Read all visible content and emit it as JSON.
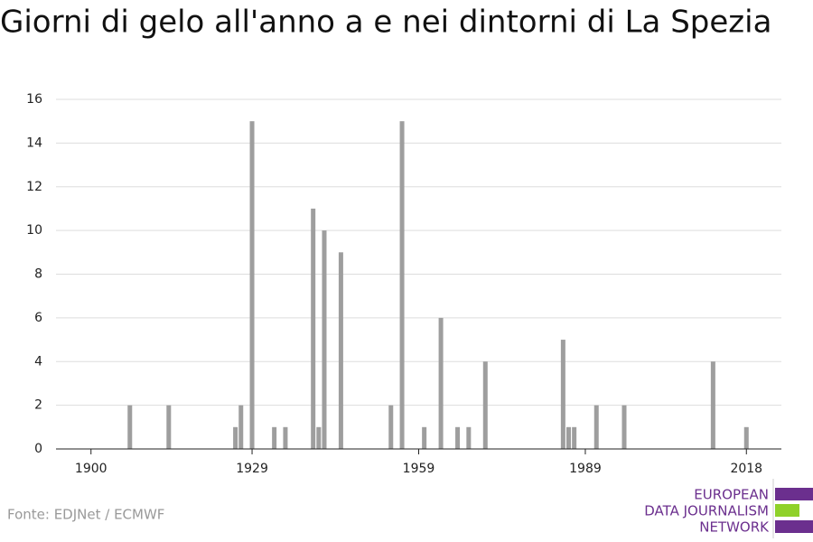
{
  "chart_data": {
    "type": "bar",
    "title": "Giorni di gelo all'anno a e nei dintorni di La Spezia",
    "x": [
      1907,
      1914,
      1926,
      1927,
      1929,
      1933,
      1935,
      1940,
      1941,
      1942,
      1945,
      1954,
      1956,
      1960,
      1963,
      1966,
      1968,
      1971,
      1985,
      1986,
      1987,
      1991,
      1996,
      2012,
      2018
    ],
    "values": [
      2,
      2,
      1,
      2,
      15,
      1,
      1,
      11,
      1,
      10,
      9,
      2,
      15,
      1,
      6,
      1,
      1,
      4,
      5,
      1,
      1,
      2,
      2,
      4,
      1
    ],
    "color": "#9e9e9e",
    "xlim": [
      1893.7,
      2024.3
    ],
    "xticks": [
      1900,
      1929,
      1959,
      1989,
      2018
    ],
    "ylim": [
      0,
      16
    ],
    "yticks": [
      0,
      2,
      4,
      6,
      8,
      10,
      12,
      14,
      16
    ],
    "grid": true,
    "source": "Fonte: EDJNet / ECMWF",
    "logo": [
      "EUROPEAN",
      "DATA JOURNALISM",
      "NETWORK"
    ]
  }
}
